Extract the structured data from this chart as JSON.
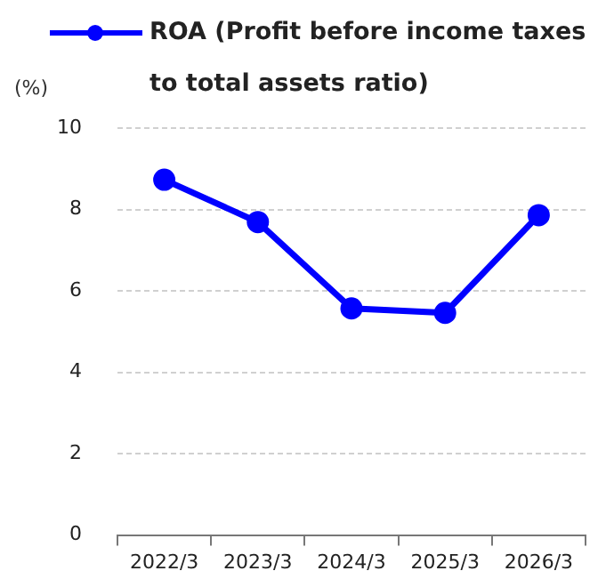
{
  "chart_data": {
    "type": "line",
    "ylabel": "(%)",
    "categories": [
      "2022/3",
      "2023/3",
      "2024/3",
      "2025/3",
      "2026/3"
    ],
    "series": [
      {
        "name": "ROA (Profit before income taxes to total assets ratio)",
        "color": "#0000ff",
        "values": [
          8.73,
          7.69,
          5.57,
          5.46,
          7.86
        ]
      }
    ],
    "ylim": [
      0,
      10
    ],
    "yticks": [
      0,
      2,
      4,
      6,
      8,
      10
    ],
    "grid": "y",
    "legend": "top left",
    "marker": "circle",
    "line_style": "solid"
  }
}
